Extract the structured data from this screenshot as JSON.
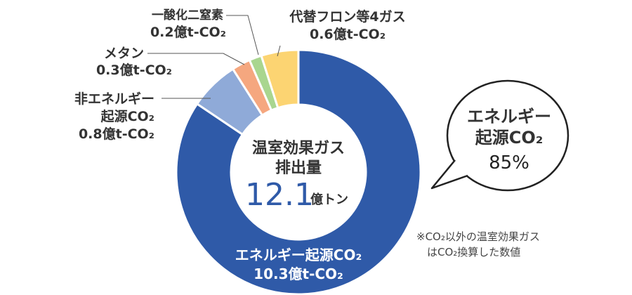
{
  "chart_data": {
    "type": "pie",
    "style": "donut",
    "center": {
      "title_line1": "温室効果ガス",
      "title_line2": "排出量",
      "total_value": "12.1",
      "total_unit": "億トン"
    },
    "unit": "億t-CO₂",
    "slices": [
      {
        "label": "エネルギー起源CO₂",
        "value_text": "10.3億t-CO₂",
        "value": 10.3,
        "color": "#2f5aa8"
      },
      {
        "label": "非エネルギー起源CO₂",
        "label_lines": [
          "非エネルギー",
          "起源CO₂"
        ],
        "value_text": "0.8億t-CO₂",
        "value": 0.8,
        "color": "#8faad8"
      },
      {
        "label": "メタン",
        "value_text": "0.3億t-CO₂",
        "value": 0.3,
        "color": "#f5a77f"
      },
      {
        "label": "一酸化二窒素",
        "value_text": "0.2億t-CO₂",
        "value": 0.2,
        "color": "#a9d68f"
      },
      {
        "label": "代替フロン等4ガス",
        "value_text": "0.6億t-CO₂",
        "value": 0.6,
        "color": "#fcd472"
      }
    ],
    "callout": {
      "line1": "エネルギー",
      "line2": "起源CO₂",
      "line3": "85%"
    },
    "note": {
      "line1": "※CO₂以外の温室効果ガス",
      "line2": "はCO₂換算した数値"
    }
  }
}
